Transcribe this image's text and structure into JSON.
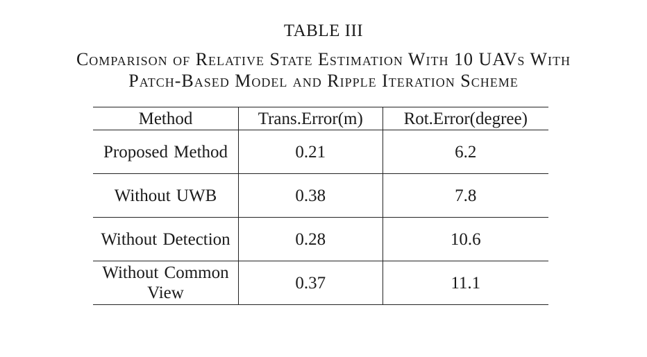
{
  "table_label": "TABLE III",
  "caption": {
    "line1": "Comparison of Relative State Estimation With 10 UAVs With",
    "line2": "Patch-Based Model and Ripple Iteration Scheme"
  },
  "columns": [
    "Method",
    "Trans.Error(m)",
    "Rot.Error(degree)"
  ],
  "rows": [
    {
      "method": "Proposed Method",
      "trans_error": "0.21",
      "rot_error": "6.2"
    },
    {
      "method": "Without UWB",
      "trans_error": "0.38",
      "rot_error": "7.8"
    },
    {
      "method": "Without Detection",
      "trans_error": "0.28",
      "rot_error": "10.6"
    },
    {
      "method": "Without Common View",
      "trans_error": "0.37",
      "rot_error": "11.1"
    }
  ]
}
